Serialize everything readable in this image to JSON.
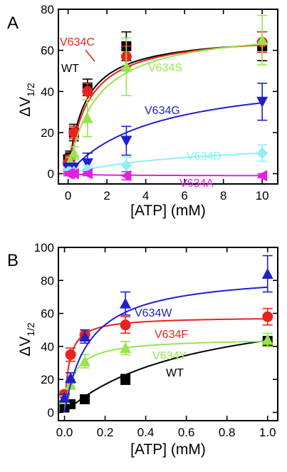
{
  "chart_data": [
    {
      "panel": "A",
      "type": "scatter",
      "xlabel": "[ATP] (mM)",
      "ylabel": "ΔV",
      "ylabel_sub": "1/2",
      "xlim": [
        -0.5,
        10.8
      ],
      "ylim": [
        -5,
        80
      ],
      "xticks": [
        0,
        2,
        4,
        6,
        8,
        10
      ],
      "yticks": [
        0,
        20,
        40,
        60,
        80
      ],
      "series": [
        {
          "name": "WT",
          "color": "#000000",
          "marker": "square",
          "x": [
            0,
            0.1,
            0.3,
            1,
            3,
            10
          ],
          "y": [
            7,
            8,
            20,
            42,
            62,
            62
          ],
          "err": [
            2,
            3,
            4,
            4,
            7,
            7
          ],
          "fit": {
            "vmax": 68,
            "k": 0.85
          }
        },
        {
          "name": "V634C",
          "color": "#e8231c",
          "marker": "circle",
          "x": [
            0,
            0.1,
            0.3,
            1,
            3,
            10
          ],
          "y": [
            5,
            7,
            20,
            40,
            57,
            64
          ],
          "err": [
            1,
            2,
            3,
            4,
            5,
            5
          ],
          "fit": {
            "vmax": 69,
            "k": 1.0
          }
        },
        {
          "name": "V634S",
          "color": "#96e64b",
          "marker": "triangle-up",
          "x": [
            0,
            0.1,
            0.3,
            1,
            3,
            10
          ],
          "y": [
            4,
            6,
            10,
            27,
            52,
            65
          ],
          "err": [
            1,
            2,
            3,
            9,
            14,
            12
          ],
          "fit": {
            "vmax": 72,
            "k": 1.4
          }
        },
        {
          "name": "V634G",
          "color": "#1f1fd0",
          "marker": "triangle-down",
          "x": [
            0,
            0.1,
            0.3,
            1,
            3,
            10
          ],
          "y": [
            3,
            3,
            3,
            5,
            16,
            35
          ],
          "err": [
            1,
            1,
            2,
            5,
            7,
            9
          ],
          "fit": {
            "vmax": 50,
            "k": 4.5
          }
        },
        {
          "name": "V634D",
          "color": "#8ff0f5",
          "marker": "diamond",
          "x": [
            0,
            0.1,
            0.3,
            1,
            3,
            10
          ],
          "y": [
            1,
            1,
            1,
            2,
            4,
            10
          ],
          "err": [
            1,
            1,
            1,
            2,
            4,
            4
          ],
          "fit": {
            "vmax": 17,
            "k": 7
          }
        },
        {
          "name": "V634A",
          "color": "#e020e0",
          "marker": "triangle-left",
          "x": [
            0,
            0.1,
            0.3,
            1,
            3,
            10
          ],
          "y": [
            0,
            0,
            0,
            0,
            -1,
            -1
          ],
          "err": [
            1,
            1,
            1,
            1,
            2,
            1
          ],
          "fit": {
            "vmax": -1,
            "k": 1
          }
        }
      ]
    },
    {
      "panel": "B",
      "type": "scatter",
      "xlabel": "[ATP] (mM)",
      "ylabel": "ΔV",
      "ylabel_sub": "1/2",
      "xlim": [
        -0.03,
        1.05
      ],
      "ylim": [
        -5,
        100
      ],
      "xticks": [
        0.0,
        0.2,
        0.4,
        0.6,
        0.8,
        1.0
      ],
      "xticklabels": [
        "0.0",
        "0.2",
        "0.4",
        "0.6",
        "0.8",
        "1.0"
      ],
      "yticks": [
        0,
        20,
        40,
        60,
        80,
        100
      ],
      "series": [
        {
          "name": "WT",
          "color": "#000000",
          "marker": "square",
          "x": [
            0,
            0.03,
            0.1,
            0.3,
            1
          ],
          "y": [
            3,
            5,
            8,
            20,
            43
          ],
          "err": [
            1,
            1,
            2,
            3,
            3
          ],
          "fit": {
            "vmax": 72,
            "k": 0.65
          }
        },
        {
          "name": "V634F",
          "color": "#e8231c",
          "marker": "circle",
          "x": [
            0,
            0.03,
            0.1,
            0.3,
            1
          ],
          "y": [
            11,
            35,
            47,
            53,
            58
          ],
          "err": [
            2,
            4,
            3,
            5,
            5
          ],
          "fit": {
            "vmax": 58,
            "k": 0.022
          }
        },
        {
          "name": "V634Y",
          "color": "#96e64b",
          "marker": "triangle-up",
          "x": [
            0,
            0.03,
            0.1,
            0.3,
            1
          ],
          "y": [
            8,
            17,
            31,
            39,
            44
          ],
          "err": [
            2,
            3,
            4,
            4,
            4
          ],
          "fit": {
            "vmax": 45,
            "k": 0.045
          }
        },
        {
          "name": "V634W",
          "color": "#1f1fd0",
          "marker": "triangle-up",
          "x": [
            0,
            0.03,
            0.1,
            0.3,
            1
          ],
          "y": [
            9,
            21,
            46,
            66,
            84
          ],
          "err": [
            2,
            3,
            4,
            7,
            11
          ],
          "fit": {
            "vmax": 85,
            "k": 0.12
          }
        }
      ]
    }
  ]
}
